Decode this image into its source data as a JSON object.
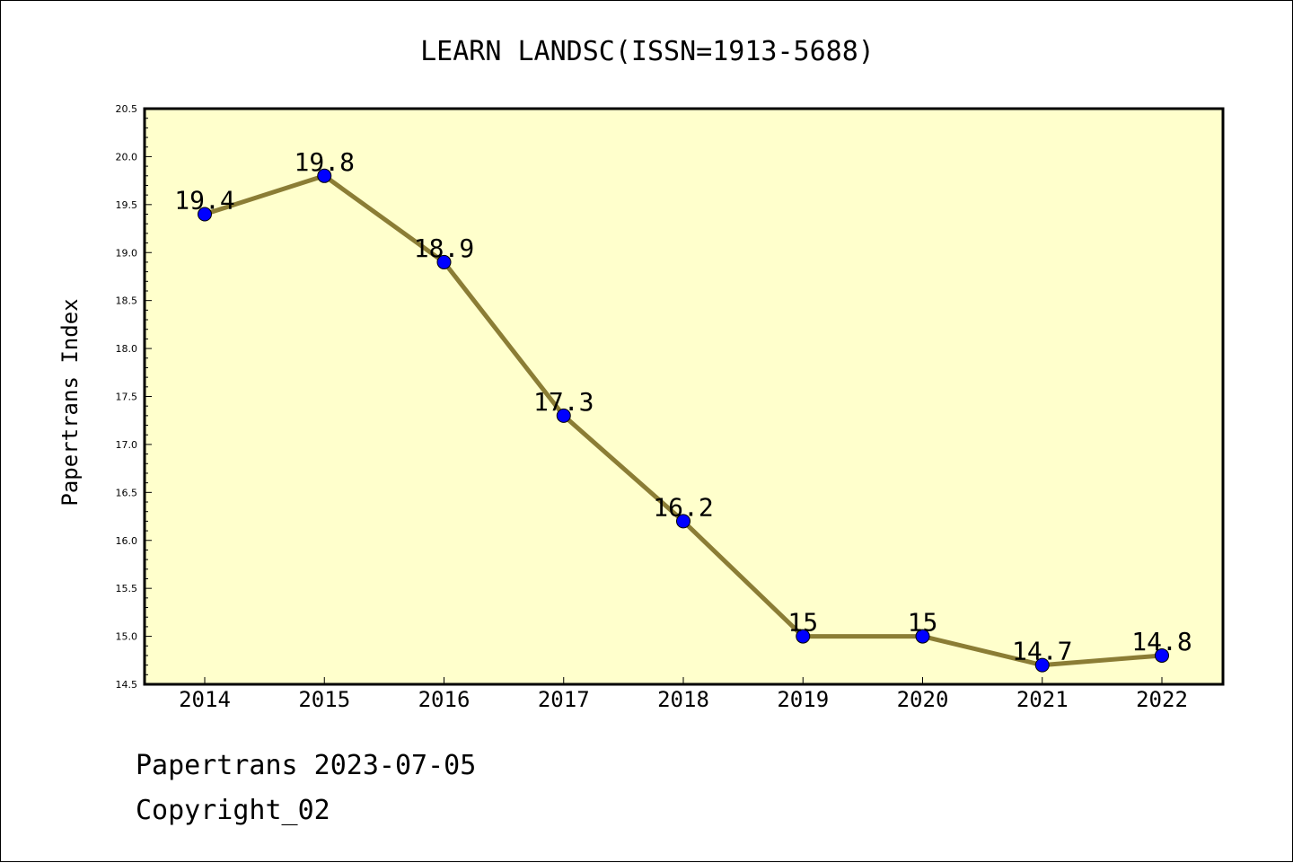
{
  "chart_data": {
    "type": "line",
    "title": "LEARN LANDSC(ISSN=1913-5688)",
    "xlabel": "",
    "ylabel": "Papertrans Index",
    "categories": [
      "2014",
      "2015",
      "2016",
      "2017",
      "2018",
      "2019",
      "2020",
      "2021",
      "2022"
    ],
    "values": [
      19.4,
      19.8,
      18.9,
      17.3,
      16.2,
      15,
      15,
      14.7,
      14.8
    ],
    "data_labels": [
      "19.4",
      "19.8",
      "18.9",
      "17.3",
      "16.2",
      "15",
      "15",
      "14.7",
      "14.8"
    ],
    "ylim": [
      14.5,
      20.5
    ],
    "y_ticks": [
      "14.5",
      "15.0",
      "15.5",
      "16.0",
      "16.5",
      "17.0",
      "17.5",
      "18.0",
      "18.5",
      "19.0",
      "19.5",
      "20.0",
      "20.5"
    ],
    "grid": false,
    "legend": "none",
    "colors": {
      "plot_background": "#ffffcc",
      "line": "#8b7d35",
      "marker": "#0000ff",
      "marker_edge": "#000000"
    }
  },
  "footer": {
    "line1": "Papertrans 2023-07-05",
    "line2": "Copyright_02"
  }
}
